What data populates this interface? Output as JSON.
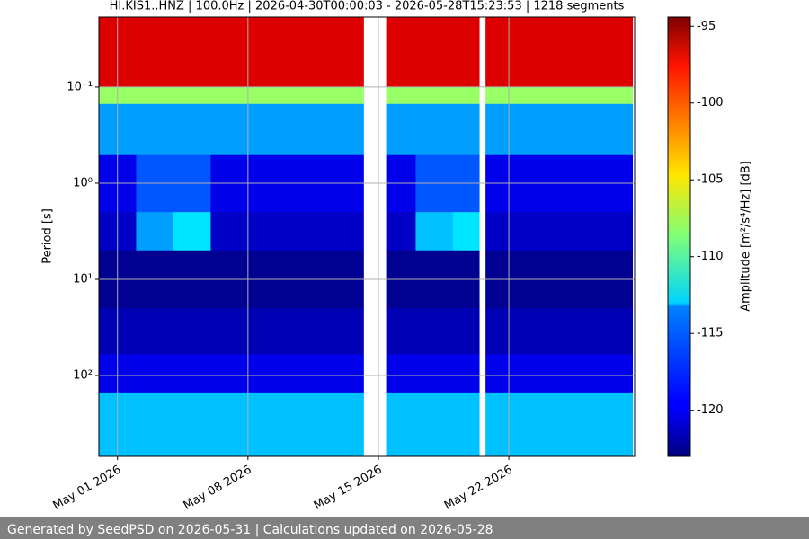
{
  "chart_data": {
    "type": "spectrogram",
    "title": "HI.KIS1..HNZ | 100.0Hz | 2026-04-30T00:00:03 - 2026-05-28T15:23:53 | 1218 segments",
    "y_label": "Period [s]",
    "log_y": true,
    "invert_y": true,
    "grid": true,
    "xlim": [
      "2026-04-30T00:00",
      "2026-05-28T18:00"
    ],
    "xticks": [
      {
        "value": "2026-05-01T00:00",
        "label": "May 01 2026"
      },
      {
        "value": "2026-05-08T00:00",
        "label": "May 08 2026"
      },
      {
        "value": "2026-05-15T00:00",
        "label": "May 15 2026"
      },
      {
        "value": "2026-05-22T00:00",
        "label": "May 22 2026"
      }
    ],
    "ylim": [
      0.0187,
      693
    ],
    "yticks": [
      {
        "value": 0.1,
        "label": "10⁻¹"
      },
      {
        "value": 1,
        "label": "10⁰"
      },
      {
        "value": 10,
        "label": "10¹"
      },
      {
        "value": 100,
        "label": "10²"
      }
    ],
    "time_bins": [
      "2026-04-30T00:00",
      "2026-05-02T00:00",
      "2026-05-04T00:00",
      "2026-05-06T00:00",
      "2026-05-08T00:00",
      "2026-05-10T00:00",
      "2026-05-12T00:00",
      "2026-05-14T05:00",
      "2026-05-15T10:00",
      "2026-05-17T00:00",
      "2026-05-19T00:00",
      "2026-05-20T10:00",
      "2026-05-20T18:00",
      "2026-05-23T00:00",
      "2026-05-26T00:00",
      "2026-05-28T15:23"
    ],
    "period_bins": [
      0.0187,
      0.1,
      0.15,
      0.5,
      2,
      5,
      20,
      60,
      150,
      693
    ],
    "z": [
      [
        -97,
        -97,
        -97,
        -97,
        -97,
        -97,
        -97,
        null,
        -97,
        -97,
        -97,
        null,
        -97,
        -97,
        -97
      ],
      [
        -108,
        -108,
        -108,
        -108,
        -108,
        -108,
        -108,
        null,
        -108,
        -108,
        -108,
        null,
        -108,
        -108,
        -108
      ],
      [
        -115,
        -115,
        -115,
        -115,
        -115,
        -115,
        -115,
        null,
        -115,
        -115,
        -115,
        null,
        -115,
        -115,
        -115
      ],
      [
        -120,
        -117,
        -117,
        -120,
        -120,
        -120,
        -120,
        null,
        -120,
        -117,
        -117,
        null,
        -120,
        -120,
        -120
      ],
      [
        -121,
        -115,
        -113,
        -121,
        -121,
        -121,
        -121,
        null,
        -121,
        -114,
        -113,
        null,
        -121,
        -121,
        -121
      ],
      [
        -122.5,
        -122.5,
        -122.5,
        -122.5,
        -122.5,
        -122.5,
        -122.5,
        null,
        -122.5,
        -122.5,
        -122.5,
        null,
        -122.5,
        -122.5,
        -122.5
      ],
      [
        -121.5,
        -121.5,
        -121.5,
        -121.5,
        -121.5,
        -121.5,
        -121.5,
        null,
        -121.5,
        -121.5,
        -121.5,
        null,
        -121.5,
        -121.5,
        -121.5
      ],
      [
        -120,
        -120,
        -120,
        -120,
        -120,
        -120,
        -120,
        null,
        -120,
        -120,
        -120,
        null,
        -120,
        -120,
        -120
      ],
      [
        -114,
        -114,
        -114,
        -114,
        -114,
        -114,
        -114,
        null,
        -114,
        -114,
        -114,
        null,
        -114,
        -114,
        -114
      ]
    ],
    "colorbar": {
      "label": "Amplitude [m²/s⁴/Hz] [dB]",
      "colormap": "jet",
      "clim": [
        -123,
        -94.4
      ],
      "ticks": [
        -95,
        -100,
        -105,
        -110,
        -115,
        -120
      ]
    }
  },
  "footer": "Generated by SeedPSD on 2026-05-31 | Calculations updated on 2026-05-28"
}
